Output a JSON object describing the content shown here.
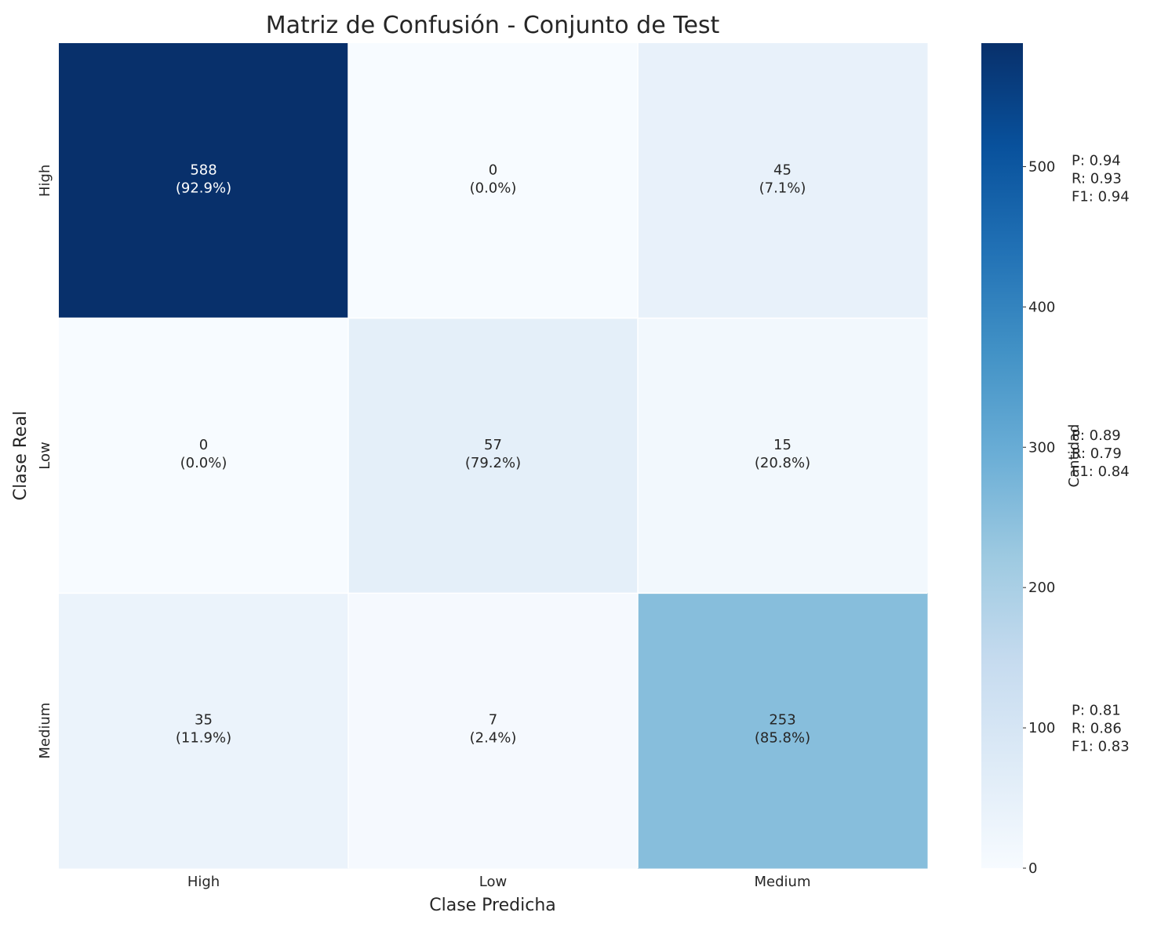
{
  "chart_data": {
    "type": "heatmap",
    "title": "Matriz de Confusión - Conjunto de Test",
    "xlabel": "Clase Predicha",
    "ylabel": "Clase Real",
    "x_categories": [
      "High",
      "Low",
      "Medium"
    ],
    "y_categories": [
      "High",
      "Low",
      "Medium"
    ],
    "values": [
      [
        588,
        0,
        45
      ],
      [
        0,
        57,
        15
      ],
      [
        35,
        7,
        253
      ]
    ],
    "percent_labels": [
      [
        "(92.9%)",
        "(0.0%)",
        "(7.1%)"
      ],
      [
        "(0.0%)",
        "(79.2%)",
        "(20.8%)"
      ],
      [
        "(11.9%)",
        "(2.4%)",
        "(85.8%)"
      ]
    ],
    "colorscale": "Blues",
    "colorbar": {
      "label": "Cantidad",
      "min": 0,
      "max": 588,
      "ticks": [
        0,
        100,
        200,
        300,
        400,
        500
      ]
    },
    "class_metrics": [
      {
        "class": "High",
        "lines": [
          "P: 0.94",
          "R: 0.93",
          "F1: 0.94"
        ]
      },
      {
        "class": "Low",
        "lines": [
          "P: 0.89",
          "R: 0.79",
          "F1: 0.84"
        ]
      },
      {
        "class": "Medium",
        "lines": [
          "P: 0.81",
          "R: 0.86",
          "F1: 0.83"
        ]
      }
    ]
  }
}
